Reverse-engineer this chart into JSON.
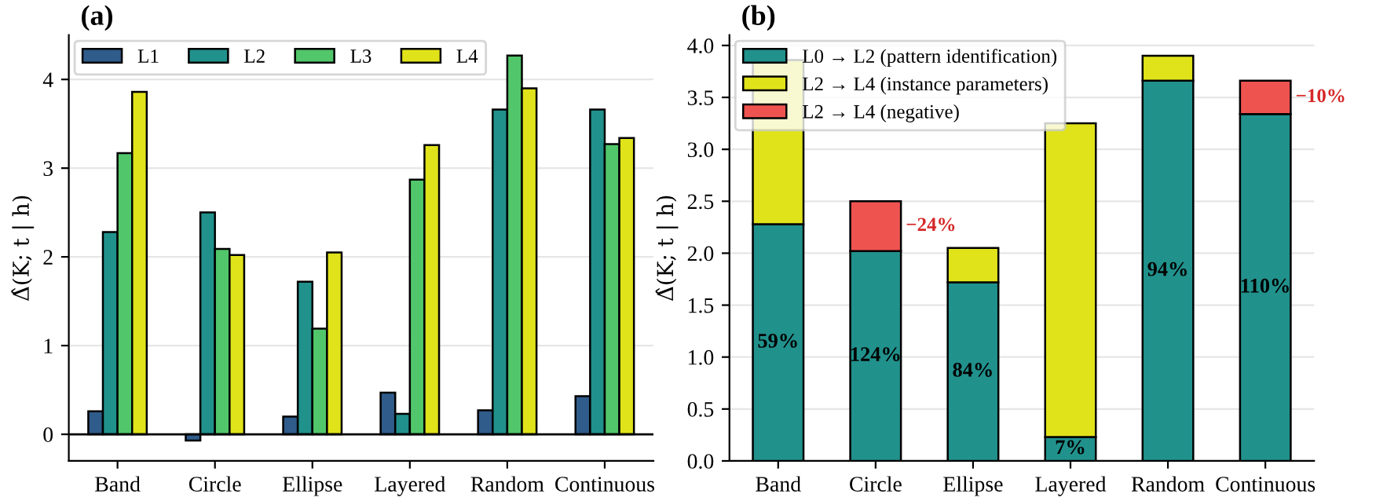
{
  "chart_data": [
    {
      "type": "bar",
      "title": "(a)",
      "ylabel": "Δ̂(K; t | h)",
      "categories": [
        "Band",
        "Circle",
        "Ellipse",
        "Layered",
        "Random",
        "Continuous"
      ],
      "series": [
        {
          "name": "L1",
          "color": "#2f5c8a",
          "values": [
            0.26,
            -0.07,
            0.2,
            0.47,
            0.27,
            0.43
          ]
        },
        {
          "name": "L2",
          "color": "#21918c",
          "values": [
            2.28,
            2.5,
            1.72,
            0.23,
            3.66,
            3.66
          ]
        },
        {
          "name": "L3",
          "color": "#52c66a",
          "values": [
            3.17,
            2.09,
            1.19,
            2.87,
            4.27,
            3.27
          ]
        },
        {
          "name": "L4",
          "color": "#e0e31a",
          "values": [
            3.86,
            2.02,
            2.05,
            3.26,
            3.9,
            3.34
          ]
        }
      ],
      "ylim": [
        -0.3,
        4.5
      ],
      "yticks": [
        0,
        1,
        2,
        3,
        4
      ],
      "grid": "y",
      "legend": "top left",
      "ref_lines": [
        {
          "axis": "y",
          "value": 0,
          "color": "#000000"
        }
      ]
    },
    {
      "type": "bar",
      "title": "(b)",
      "ylabel": "Δ̂(K; t | h)",
      "stacked": true,
      "categories": [
        "Band",
        "Circle",
        "Ellipse",
        "Layered",
        "Random",
        "Continuous"
      ],
      "series": [
        {
          "name": "L0 → L2 (pattern identification)",
          "color": "#21918c",
          "values": [
            2.28,
            2.02,
            1.72,
            0.23,
            3.66,
            3.34
          ]
        },
        {
          "name": "L2 → L4 (instance parameters)",
          "color": "#e0e31a",
          "values": [
            1.58,
            null,
            0.33,
            3.02,
            0.24,
            null
          ]
        },
        {
          "name": "L2 → L4 (negative)",
          "color": "#ef5350",
          "values": [
            null,
            0.48,
            null,
            null,
            null,
            0.32
          ]
        }
      ],
      "ylim": [
        0,
        4.1
      ],
      "yticks": [
        {
          "value": 0,
          "label": "0.0"
        },
        0.5,
        {
          "value": 1,
          "label": "1.0"
        },
        1.5,
        {
          "value": 2,
          "label": "2.0"
        },
        2.5,
        {
          "value": 3,
          "label": "3.0"
        },
        3.5,
        {
          "value": 4,
          "label": "4.0"
        }
      ],
      "grid": "y",
      "legend": "top left",
      "annotations": [
        "59%",
        "124%",
        "84%",
        "7%",
        "94%",
        "110%",
        "−24%",
        "−10%"
      ]
    }
  ]
}
